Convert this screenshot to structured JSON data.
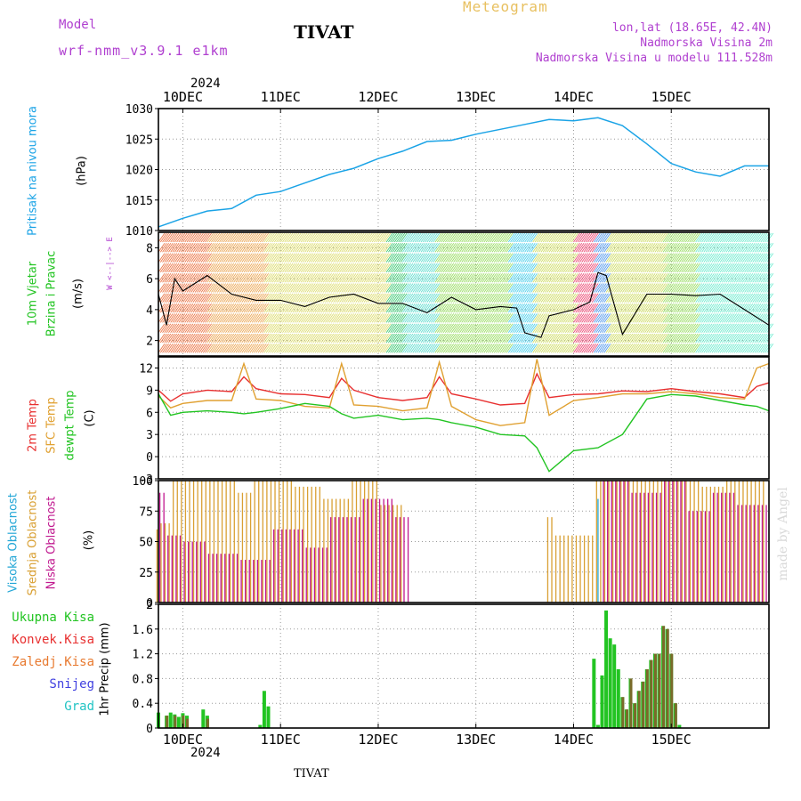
{
  "header": {
    "model_label": "Model",
    "model_name": "wrf-nmm_v3.9.1 e1km",
    "station": "TIVAT",
    "product": "Meteogram",
    "lonlat": "lon,lat (18.65E, 42.4N)",
    "altitude": "Nadmorska Visina 2m",
    "model_altitude": "Nadmorska Visina u modelu 111.528m"
  },
  "footer": {
    "station": "TIVAT",
    "watermark": "made by Angel"
  },
  "colors": {
    "pressure": "#1aa3e6",
    "temp2m": "#e83030",
    "sfc_temp": "#e0a030",
    "dewpoint": "#22c422",
    "high_cloud": "#22a6d6",
    "mid_cloud": "#d9a033",
    "low_cloud": "#c0188f",
    "total_precip": "#22c422",
    "conv_precip": "#e83030",
    "grid_precip": "#e87a30",
    "snow": "#4040e0",
    "hail": "#22c4c4",
    "purple_text": "#b040d0"
  },
  "chart_data": [
    {
      "type": "line",
      "panel": "pressure",
      "ylabel_lines": [
        "Pritisak na nivou mora",
        "(hPa)"
      ],
      "ylim": [
        1010,
        1030
      ],
      "yticks": [
        1010,
        1015,
        1020,
        1025,
        1030
      ],
      "top_year": "2024",
      "x_days": [
        "10DEC",
        "11DEC",
        "12DEC",
        "13DEC",
        "14DEC",
        "15DEC"
      ],
      "x_hours": [
        -6,
        0,
        6,
        12,
        18,
        24,
        30,
        36,
        42,
        48,
        54,
        60,
        66,
        72,
        78,
        84,
        90,
        96,
        102,
        108,
        114,
        120,
        126,
        132,
        138,
        144
      ],
      "series": [
        {
          "name": "pressure",
          "values": [
            1010.6,
            1012.0,
            1013.2,
            1013.6,
            1015.8,
            1016.4,
            1017.8,
            1019.2,
            1020.2,
            1021.8,
            1023.0,
            1024.6,
            1024.8,
            1025.8,
            1026.6,
            1027.4,
            1028.2,
            1028.0,
            1028.5,
            1027.2,
            1024.2,
            1021.0,
            1019.6,
            1018.9,
            1020.6,
            1020.6
          ]
        }
      ]
    },
    {
      "type": "line",
      "panel": "wind",
      "ylabel_lines": [
        "10m Vjetar",
        "Brzina i Pravac",
        "(m/s)"
      ],
      "direction_key": "W <--|--> E",
      "ylim": [
        1,
        9
      ],
      "yticks": [
        2,
        4,
        6,
        8
      ],
      "x_hours": [
        -6,
        -4,
        -2,
        0,
        6,
        12,
        18,
        24,
        30,
        36,
        42,
        48,
        54,
        60,
        66,
        72,
        78,
        82,
        84,
        88,
        90,
        96,
        100,
        102,
        104,
        108,
        114,
        120,
        126,
        132,
        138,
        144
      ],
      "series": [
        {
          "name": "speed",
          "values": [
            5.0,
            3.0,
            6.0,
            5.2,
            6.2,
            5.0,
            4.6,
            4.6,
            4.2,
            4.8,
            5.0,
            4.4,
            4.4,
            3.8,
            4.8,
            4.0,
            4.2,
            4.1,
            2.5,
            2.2,
            3.6,
            4.0,
            4.5,
            6.4,
            6.2,
            2.4,
            5.0,
            5.0,
            4.9,
            5.0,
            4.0,
            3.0
          ]
        }
      ]
    },
    {
      "type": "line",
      "panel": "temperature",
      "ylabel_lines": [
        "2m Temp",
        "SFC Temp",
        "dewpt Temp",
        "(C)"
      ],
      "ylim": [
        -3,
        13.5
      ],
      "yticks": [
        -3,
        0,
        3,
        6,
        9,
        12
      ],
      "x_hours": [
        -6,
        -3,
        0,
        6,
        12,
        15,
        18,
        24,
        30,
        36,
        39,
        42,
        48,
        54,
        60,
        63,
        66,
        72,
        78,
        84,
        87,
        90,
        96,
        102,
        108,
        114,
        120,
        126,
        132,
        138,
        141,
        144
      ],
      "series": [
        {
          "name": "2m Temp",
          "values": [
            9.0,
            7.5,
            8.5,
            9.0,
            8.8,
            10.8,
            9.2,
            8.5,
            8.4,
            8.0,
            10.6,
            9.0,
            8.0,
            7.6,
            8.0,
            10.8,
            8.5,
            7.8,
            7.0,
            7.2,
            11.2,
            8.0,
            8.4,
            8.5,
            8.9,
            8.8,
            9.2,
            8.8,
            8.5,
            8.0,
            9.5,
            10.0
          ]
        },
        {
          "name": "SFC Temp",
          "values": [
            8.2,
            6.6,
            7.2,
            7.6,
            7.6,
            12.6,
            7.8,
            7.6,
            6.8,
            6.6,
            12.6,
            7.0,
            6.8,
            6.2,
            6.6,
            12.8,
            6.8,
            5.0,
            4.2,
            4.6,
            13.2,
            5.6,
            7.6,
            8.0,
            8.5,
            8.5,
            8.8,
            8.5,
            8.0,
            7.8,
            12.0,
            12.6
          ]
        },
        {
          "name": "dewpt Temp",
          "values": [
            8.5,
            5.6,
            6.0,
            6.2,
            6.0,
            5.8,
            6.0,
            6.5,
            7.2,
            6.8,
            5.8,
            5.2,
            5.6,
            5.0,
            5.2,
            5.0,
            4.6,
            4.0,
            3.0,
            2.8,
            1.2,
            -2.0,
            0.8,
            1.2,
            3.0,
            7.8,
            8.4,
            8.2,
            7.6,
            7.0,
            6.8,
            6.2
          ]
        }
      ]
    },
    {
      "type": "bar",
      "panel": "clouds",
      "ylabel_lines": [
        "Visoka Oblacnost",
        "Srednja Oblacnost",
        "Niska Oblacnost",
        "(%)"
      ],
      "ylim": [
        0,
        100
      ],
      "yticks": [
        0,
        25,
        50,
        75,
        100
      ],
      "step_hours": 1,
      "series": [
        {
          "name": "Visoka Oblacnost",
          "segments": [
            [
              -6,
              0,
              0
            ],
            [
              0,
              102,
              0
            ],
            [
              102,
              103,
              85
            ],
            [
              103,
              144,
              0
            ]
          ]
        },
        {
          "name": "Srednja Oblacnost",
          "segments": [
            [
              -6,
              -5,
              60
            ],
            [
              -5,
              -2,
              65
            ],
            [
              -2,
              5,
              100
            ],
            [
              5,
              14,
              100
            ],
            [
              14,
              18,
              90
            ],
            [
              18,
              28,
              100
            ],
            [
              28,
              35,
              95
            ],
            [
              35,
              42,
              85
            ],
            [
              42,
              49,
              100
            ],
            [
              49,
              55,
              80
            ],
            [
              55,
              90,
              0
            ],
            [
              90,
              92,
              70
            ],
            [
              92,
              102,
              55
            ],
            [
              102,
              128,
              100
            ],
            [
              128,
              134,
              95
            ],
            [
              134,
              144,
              100
            ]
          ]
        },
        {
          "name": "Niska Oblacnost",
          "segments": [
            [
              -6,
              -4,
              90
            ],
            [
              -4,
              0,
              55
            ],
            [
              0,
              6,
              50
            ],
            [
              6,
              14,
              40
            ],
            [
              14,
              22,
              35
            ],
            [
              22,
              30,
              60
            ],
            [
              30,
              36,
              45
            ],
            [
              36,
              44,
              70
            ],
            [
              44,
              52,
              85
            ],
            [
              52,
              56,
              70
            ],
            [
              56,
              103,
              0
            ],
            [
              103,
              110,
              100
            ],
            [
              110,
              118,
              90
            ],
            [
              118,
              124,
              100
            ],
            [
              124,
              130,
              75
            ],
            [
              130,
              136,
              90
            ],
            [
              136,
              144,
              80
            ]
          ]
        }
      ]
    },
    {
      "type": "bar",
      "panel": "precipitation",
      "ylabel_lines": [
        "1hr Precip (mm)"
      ],
      "legend": [
        "Ukupna Kisa",
        "Konvek.Kisa",
        "Zaledj.Kisa",
        "Snijeg",
        "Grad"
      ],
      "ylim": [
        0,
        2
      ],
      "yticks": [
        0,
        0.4,
        0.8,
        1.2,
        1.6,
        2
      ],
      "x_days": [
        "10DEC",
        "11DEC",
        "12DEC",
        "13DEC",
        "14DEC",
        "15DEC"
      ],
      "bottom_year": "2024",
      "x": [
        -6,
        -4,
        -3,
        -2,
        -1,
        0,
        1,
        5,
        6,
        19,
        20,
        21,
        101,
        102,
        103,
        104,
        105,
        106,
        107,
        108,
        109,
        110,
        111,
        112,
        113,
        114,
        115,
        116,
        117,
        118,
        119,
        120,
        121,
        122,
        123,
        124,
        125,
        126,
        128
      ],
      "series": [
        {
          "name": "Ukupna Kisa",
          "values": [
            0.25,
            0.2,
            0.25,
            0.22,
            0.18,
            0.24,
            0.2,
            0.3,
            0.2,
            0.05,
            0.6,
            0.35,
            1.12,
            0.05,
            0.85,
            1.9,
            1.45,
            1.35,
            0.95,
            0.5,
            0.3,
            0.8,
            0.4,
            0.6,
            0.75,
            0.95,
            1.1,
            1.2,
            1.2,
            1.65,
            1.6,
            1.2,
            0.4,
            0.05,
            0.0,
            0.0,
            0.0,
            0.0,
            0.0
          ]
        },
        {
          "name": "Konvek.Kisa",
          "values": [
            0.0,
            0.2,
            0.0,
            0.2,
            0.0,
            0.2,
            0.15,
            0.0,
            0.15,
            0.0,
            0.0,
            0.0,
            0.0,
            0.0,
            0.0,
            0.0,
            0.0,
            0.0,
            0.0,
            0.5,
            0.3,
            0.8,
            0.4,
            0.6,
            0.75,
            0.95,
            1.1,
            1.2,
            1.2,
            1.65,
            1.6,
            1.2,
            0.4,
            0.0,
            0.0,
            0.0,
            0.0,
            0.0,
            0.0
          ]
        }
      ]
    }
  ]
}
